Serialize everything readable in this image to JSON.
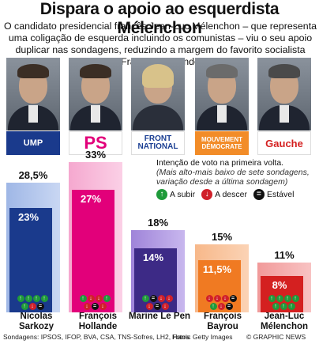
{
  "title": "Dispara o apoio ao esquerdista Mélenchon",
  "standfirst": "O candidato presidencial francês Jean-Luc Mélenchon – que representa uma coligação de esquerda incluindo os comunistas – viu o seu apoio duplicar nas sondagens, reduzindo a margem do favorito socialista François Hollande",
  "legend": {
    "line1": "Intenção de voto na primeira volta.",
    "note": "(Mais alto-mais baixo de sete sondagens, variação desde a última sondagem)",
    "up_label": "A subir",
    "down_label": "A descer",
    "stable_label": "Estável"
  },
  "logos": {
    "ump": "UMP",
    "ps": "PS",
    "fn": "FRONT NATIONAL",
    "modem": "MOUVEMENT DÉMOCRATE",
    "fg": "Gauche"
  },
  "chart_data": {
    "type": "bar",
    "title": "Intenção de voto na primeira volta.",
    "unit": "%",
    "categories": [
      "Nicolas Sarkozy",
      "François Hollande",
      "Marine Le Pen",
      "François Bayrou",
      "Jean-Luc Mélenchon"
    ],
    "series": [
      {
        "values": [
          28.5,
          33,
          18,
          15,
          11
        ],
        "labels": [
          "28,5%",
          "33%",
          "18%",
          "15%",
          "11%"
        ]
      },
      {
        "values": [
          23,
          27,
          14,
          11.5,
          8
        ],
        "labels": [
          "23%",
          "27%",
          "14%",
          "11,5%",
          "8%"
        ]
      }
    ],
    "trends": [
      [
        "up",
        "up",
        "up",
        "up",
        "up",
        "down",
        "eq"
      ],
      [
        "up",
        "down",
        "down",
        "up",
        "down",
        "eq",
        "down"
      ],
      [
        "up",
        "eq",
        "down",
        "down",
        "down",
        "eq",
        "down"
      ],
      [
        "down",
        "down",
        "down",
        "eq",
        "up",
        "down",
        "eq"
      ],
      [
        "up",
        "up",
        "up",
        "up",
        "up",
        "up",
        "up"
      ]
    ],
    "colors": [
      "#1a3a8c",
      "#e2007a",
      "#3d2a86",
      "#f07a22",
      "#d42020"
    ],
    "ylim": [
      0,
      33
    ]
  },
  "footer": {
    "source": "Sondagens: IPSOS, IFOP, BVA, CSA, TNS-Sofres, LH2, Harris",
    "credit": "Fotos: Getty Images",
    "copyright": "© GRAPHIC NEWS"
  }
}
